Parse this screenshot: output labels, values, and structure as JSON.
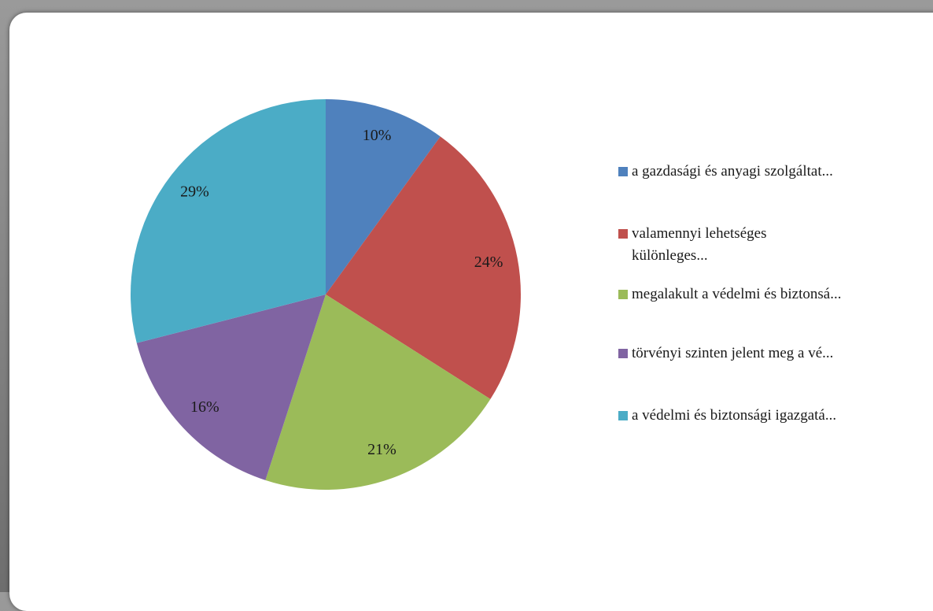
{
  "chart_data": {
    "type": "pie",
    "categories": [
      "a gazdasági és anyagi szolgáltat...",
      "valamennyi lehetséges\nkülönleges...",
      "megalakult a védelmi és biztonsá...",
      "törvényi szinten jelent meg a vé...",
      "a védelmi és biztonsági igazgatá..."
    ],
    "values": [
      10,
      24,
      21,
      16,
      29
    ],
    "value_labels": [
      "10%",
      "24%",
      "21%",
      "16%",
      "29%"
    ],
    "colors": [
      "#4f81bd",
      "#c0504d",
      "#9bbb59",
      "#8064a2",
      "#4bacc6"
    ],
    "legend": "right"
  }
}
